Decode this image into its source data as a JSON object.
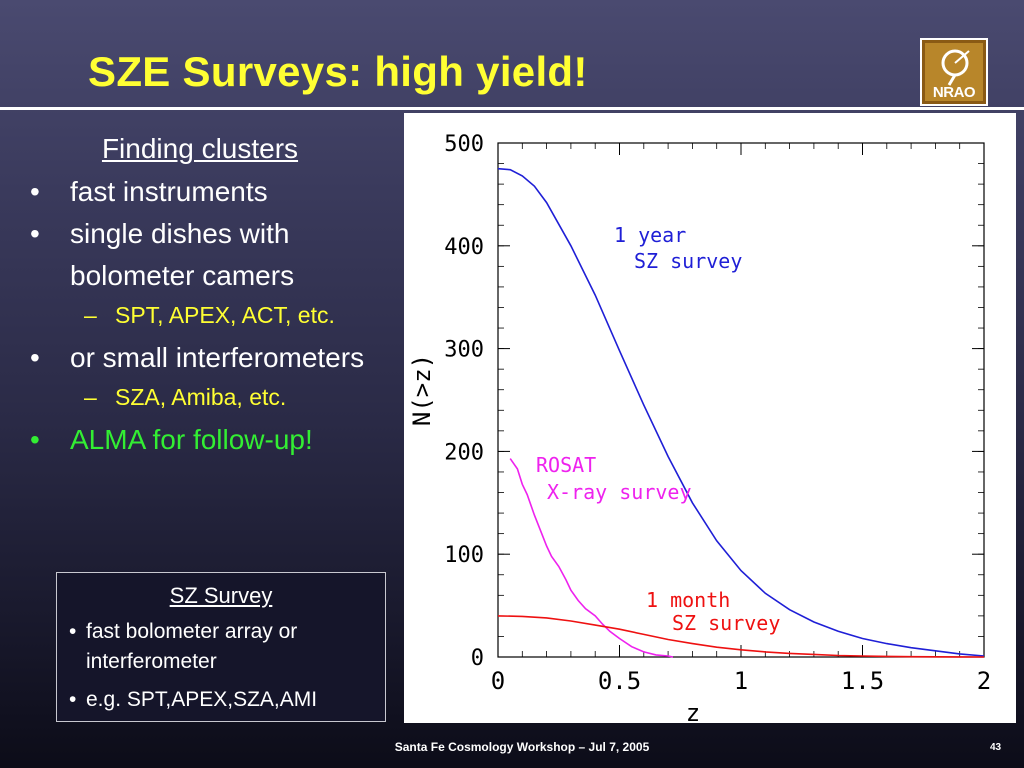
{
  "slide": {
    "title": "SZE Surveys: high yield!",
    "logo_text": "NRAO",
    "footer": "Santa Fe Cosmology Workshop  – Jul 7, 2005",
    "page_number": "43"
  },
  "left": {
    "heading": "Finding clusters",
    "bullet_glyph": "•",
    "dash_glyph": "–",
    "items": [
      {
        "text": "fast instruments"
      },
      {
        "text": "single dishes with bolometer camers"
      },
      {
        "sub": "SPT, APEX, ACT, etc."
      },
      {
        "text": "or small interferometers"
      },
      {
        "sub": "SZA, Amiba, etc."
      },
      {
        "text": "ALMA for follow-up!"
      }
    ]
  },
  "box": {
    "title": "SZ Survey",
    "items": [
      "fast bolometer array or interferometer",
      "e.g. SPT,APEX,SZA,AMI"
    ]
  },
  "chart_data": {
    "type": "line",
    "xlabel": "z",
    "ylabel": "N(>z)",
    "xlim": [
      0,
      2
    ],
    "ylim": [
      0,
      500
    ],
    "x_ticks": [
      0,
      0.5,
      1,
      1.5,
      2
    ],
    "x_tick_labels": [
      "0",
      "0.5",
      "1",
      "1.5",
      "2"
    ],
    "y_ticks": [
      0,
      100,
      200,
      300,
      400,
      500
    ],
    "y_tick_labels": [
      "0",
      "100",
      "200",
      "300",
      "400",
      "500"
    ],
    "grid": false,
    "legend": "inline labels",
    "series": [
      {
        "color": "#1f1fd6",
        "label_lines": [
          "1 year",
          " SZ survey"
        ],
        "x": [
          0,
          0.05,
          0.1,
          0.15,
          0.2,
          0.3,
          0.4,
          0.5,
          0.6,
          0.7,
          0.8,
          0.9,
          1.0,
          1.1,
          1.2,
          1.3,
          1.4,
          1.5,
          1.6,
          1.7,
          1.8,
          1.9,
          2.0
        ],
        "y": [
          475,
          474,
          468,
          458,
          442,
          400,
          352,
          298,
          245,
          195,
          150,
          113,
          84,
          62,
          46,
          34,
          25,
          18,
          13,
          9,
          6,
          3,
          1
        ]
      },
      {
        "color": "#ee22ee",
        "label_lines": [
          "ROSAT",
          " X-ray survey"
        ],
        "x": [
          0.05,
          0.08,
          0.1,
          0.12,
          0.15,
          0.18,
          0.2,
          0.22,
          0.25,
          0.28,
          0.3,
          0.33,
          0.36,
          0.4,
          0.43,
          0.46,
          0.5,
          0.55,
          0.6,
          0.65,
          0.7,
          0.72
        ],
        "y": [
          193,
          183,
          168,
          158,
          138,
          120,
          108,
          98,
          88,
          75,
          65,
          55,
          47,
          40,
          32,
          25,
          18,
          10,
          5,
          2,
          1,
          0
        ]
      },
      {
        "color": "#ee1111",
        "label_lines": [
          "1 month",
          " SZ survey"
        ],
        "x": [
          0,
          0.1,
          0.2,
          0.3,
          0.4,
          0.5,
          0.6,
          0.7,
          0.8,
          0.9,
          1.0,
          1.1,
          1.2,
          1.3,
          1.4,
          1.5,
          1.6,
          1.7,
          1.8,
          1.9,
          2.0
        ],
        "y": [
          40,
          39.5,
          38,
          35,
          31,
          27,
          22,
          17,
          13,
          9.5,
          7,
          5,
          3.5,
          2.5,
          1.5,
          1,
          0.6,
          0.3,
          0.2,
          0.1,
          0
        ]
      }
    ]
  }
}
